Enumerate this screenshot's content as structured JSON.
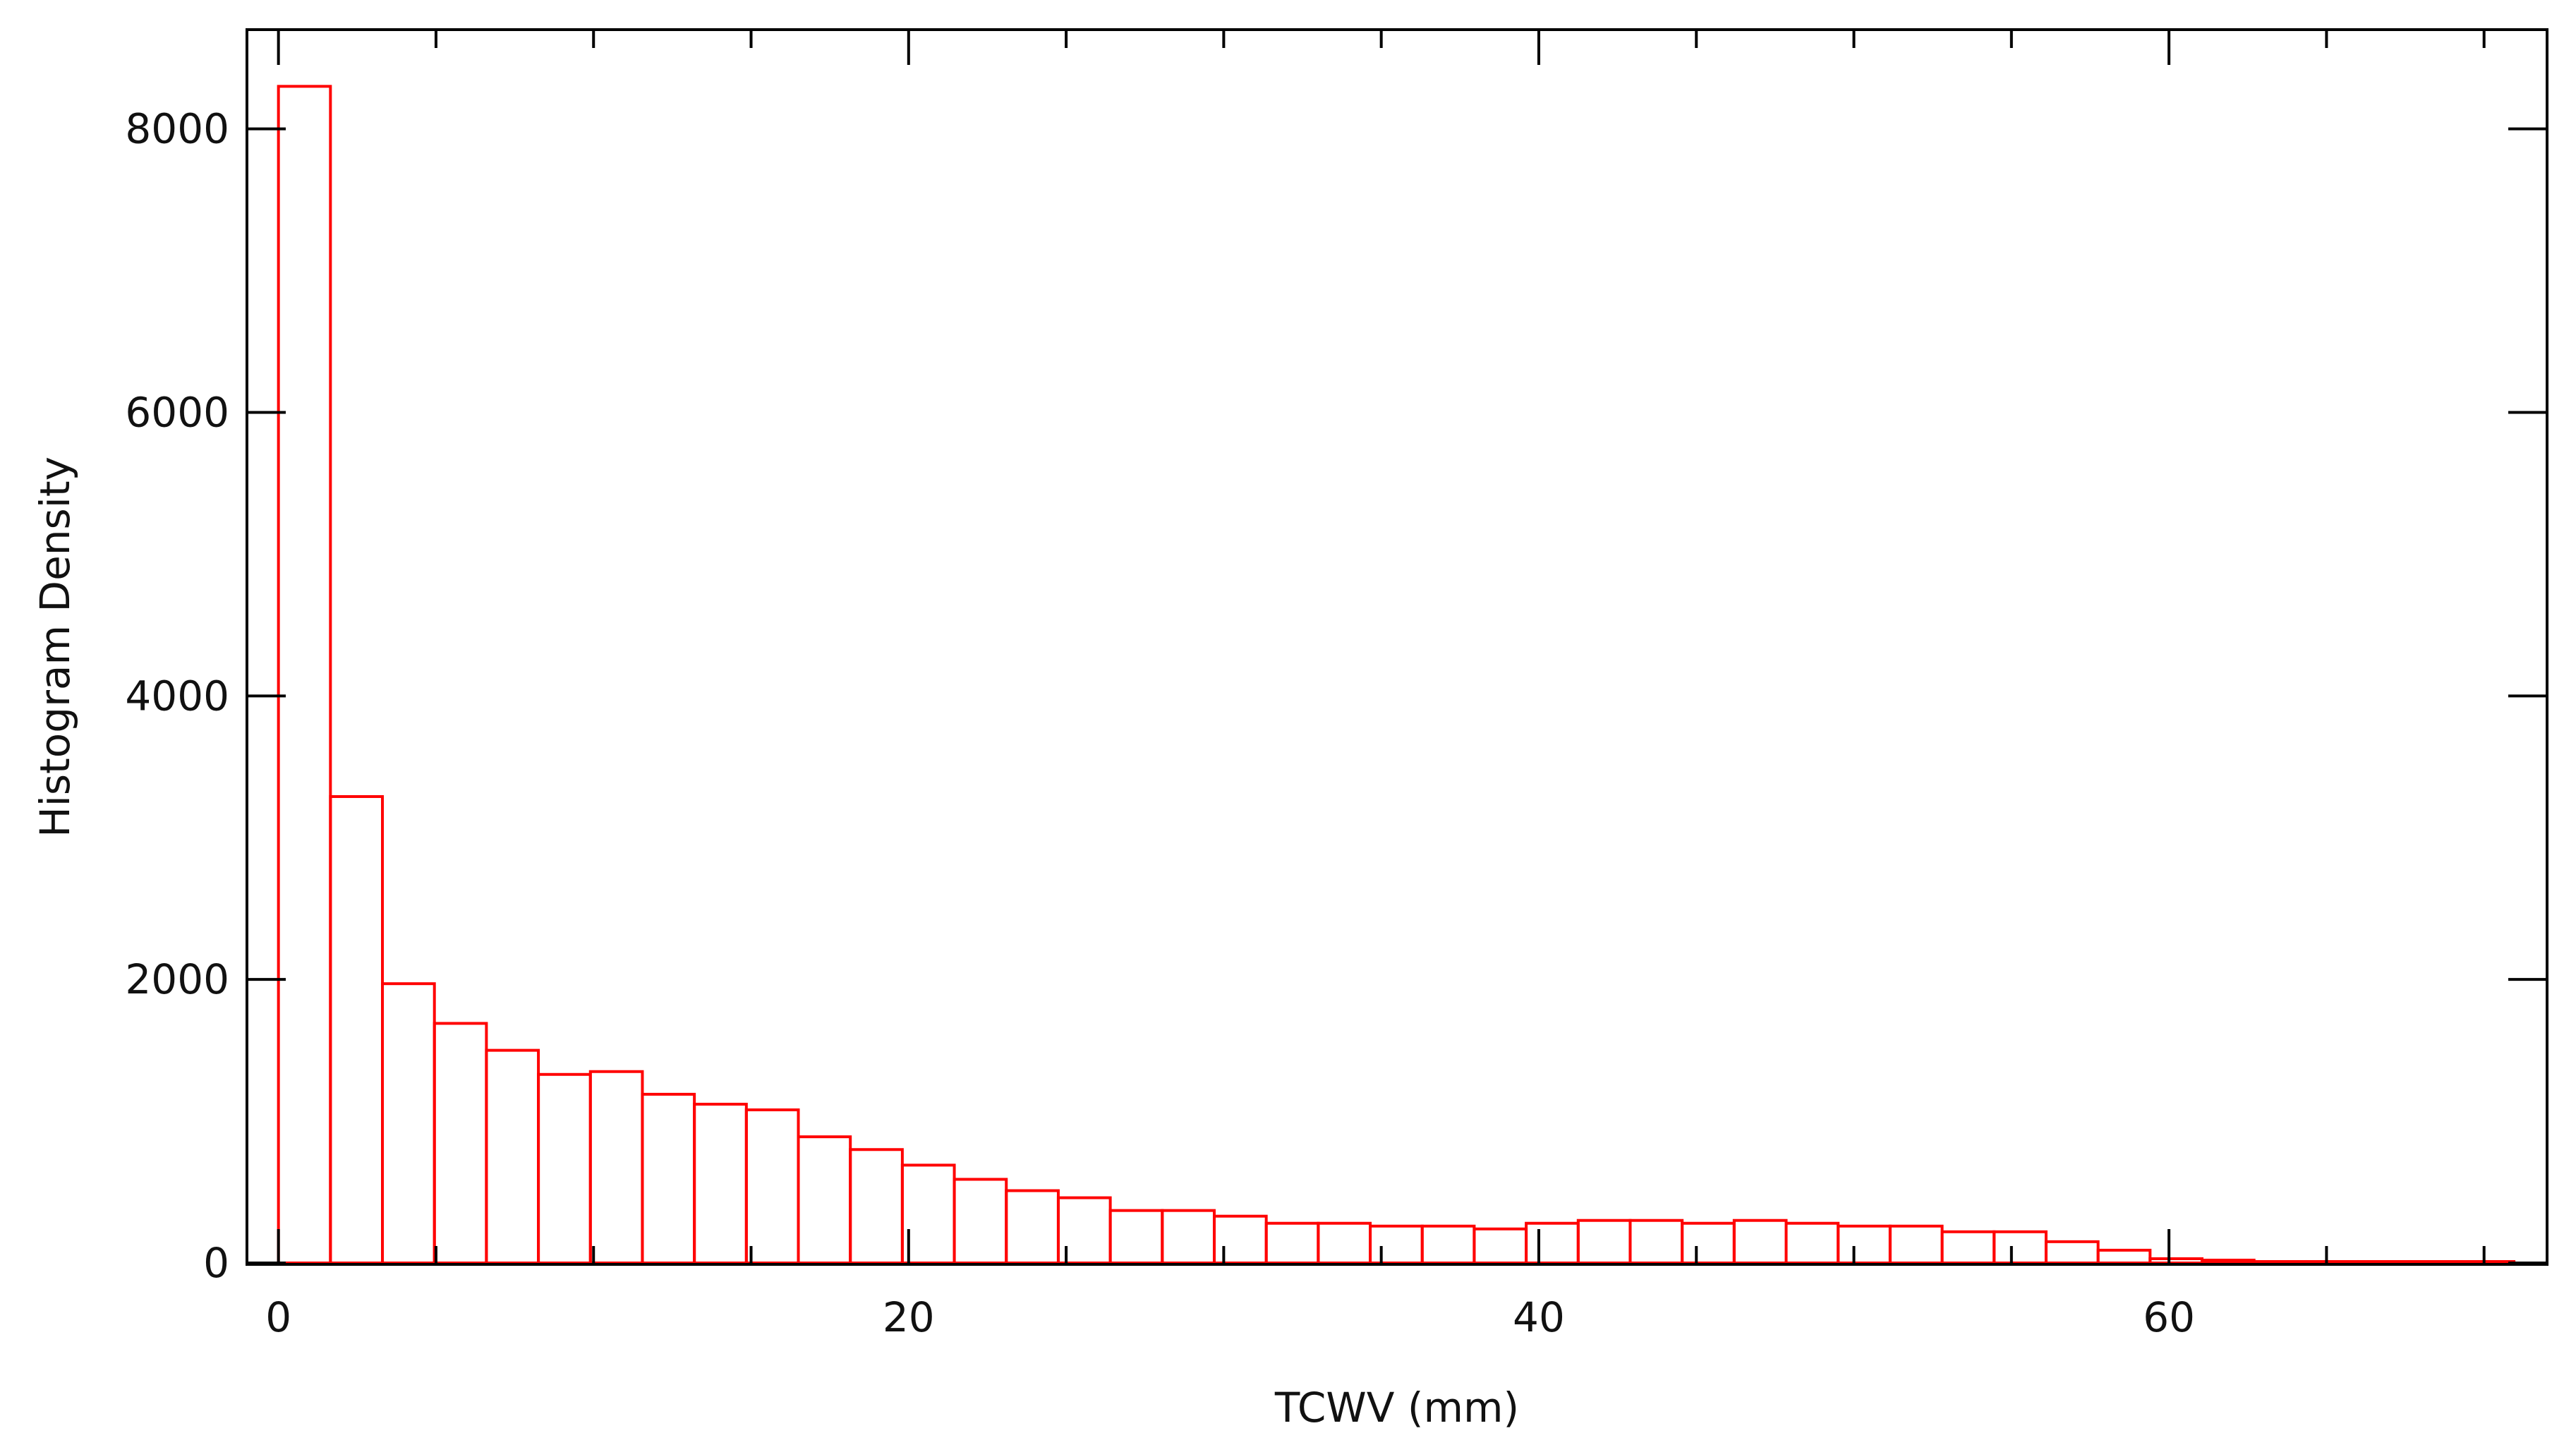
{
  "chart_data": {
    "type": "bar",
    "title": "",
    "xlabel": "TCWV (mm)",
    "ylabel": "Histogram Density",
    "xlim": [
      -1,
      72
    ],
    "ylim": [
      -10,
      8700
    ],
    "xticks": [
      0,
      20,
      40,
      60
    ],
    "yticks": [
      0,
      2000,
      4000,
      6000,
      8000
    ],
    "xtick_labels": [
      "0",
      "20",
      "40",
      "60"
    ],
    "ytick_labels": [
      "0",
      "2000",
      "4000",
      "6000",
      "8000"
    ],
    "grid": false,
    "bar_color": "#ff0000",
    "axis_color": "#000000",
    "bin_edges": [
      0,
      1.65,
      3.3,
      4.95,
      6.6,
      8.25,
      9.9,
      11.55,
      13.2,
      14.85,
      16.5,
      18.15,
      19.8,
      21.45,
      23.1,
      24.75,
      26.4,
      28.05,
      29.7,
      31.35,
      33.0,
      34.65,
      36.3,
      37.95,
      39.6,
      41.25,
      42.9,
      44.55,
      46.2,
      47.85,
      49.5,
      51.15,
      52.8,
      54.45,
      56.1,
      57.75,
      59.4,
      61.05,
      62.7,
      64.35,
      66.0,
      67.65,
      69.3,
      70.95
    ],
    "values": [
      8300,
      3290,
      1970,
      1690,
      1500,
      1330,
      1350,
      1190,
      1120,
      1080,
      890,
      800,
      690,
      590,
      510,
      460,
      370,
      370,
      330,
      280,
      280,
      260,
      260,
      240,
      280,
      300,
      300,
      280,
      300,
      280,
      260,
      260,
      220,
      220,
      150,
      90,
      30,
      20,
      10,
      10,
      10,
      10,
      10
    ]
  }
}
